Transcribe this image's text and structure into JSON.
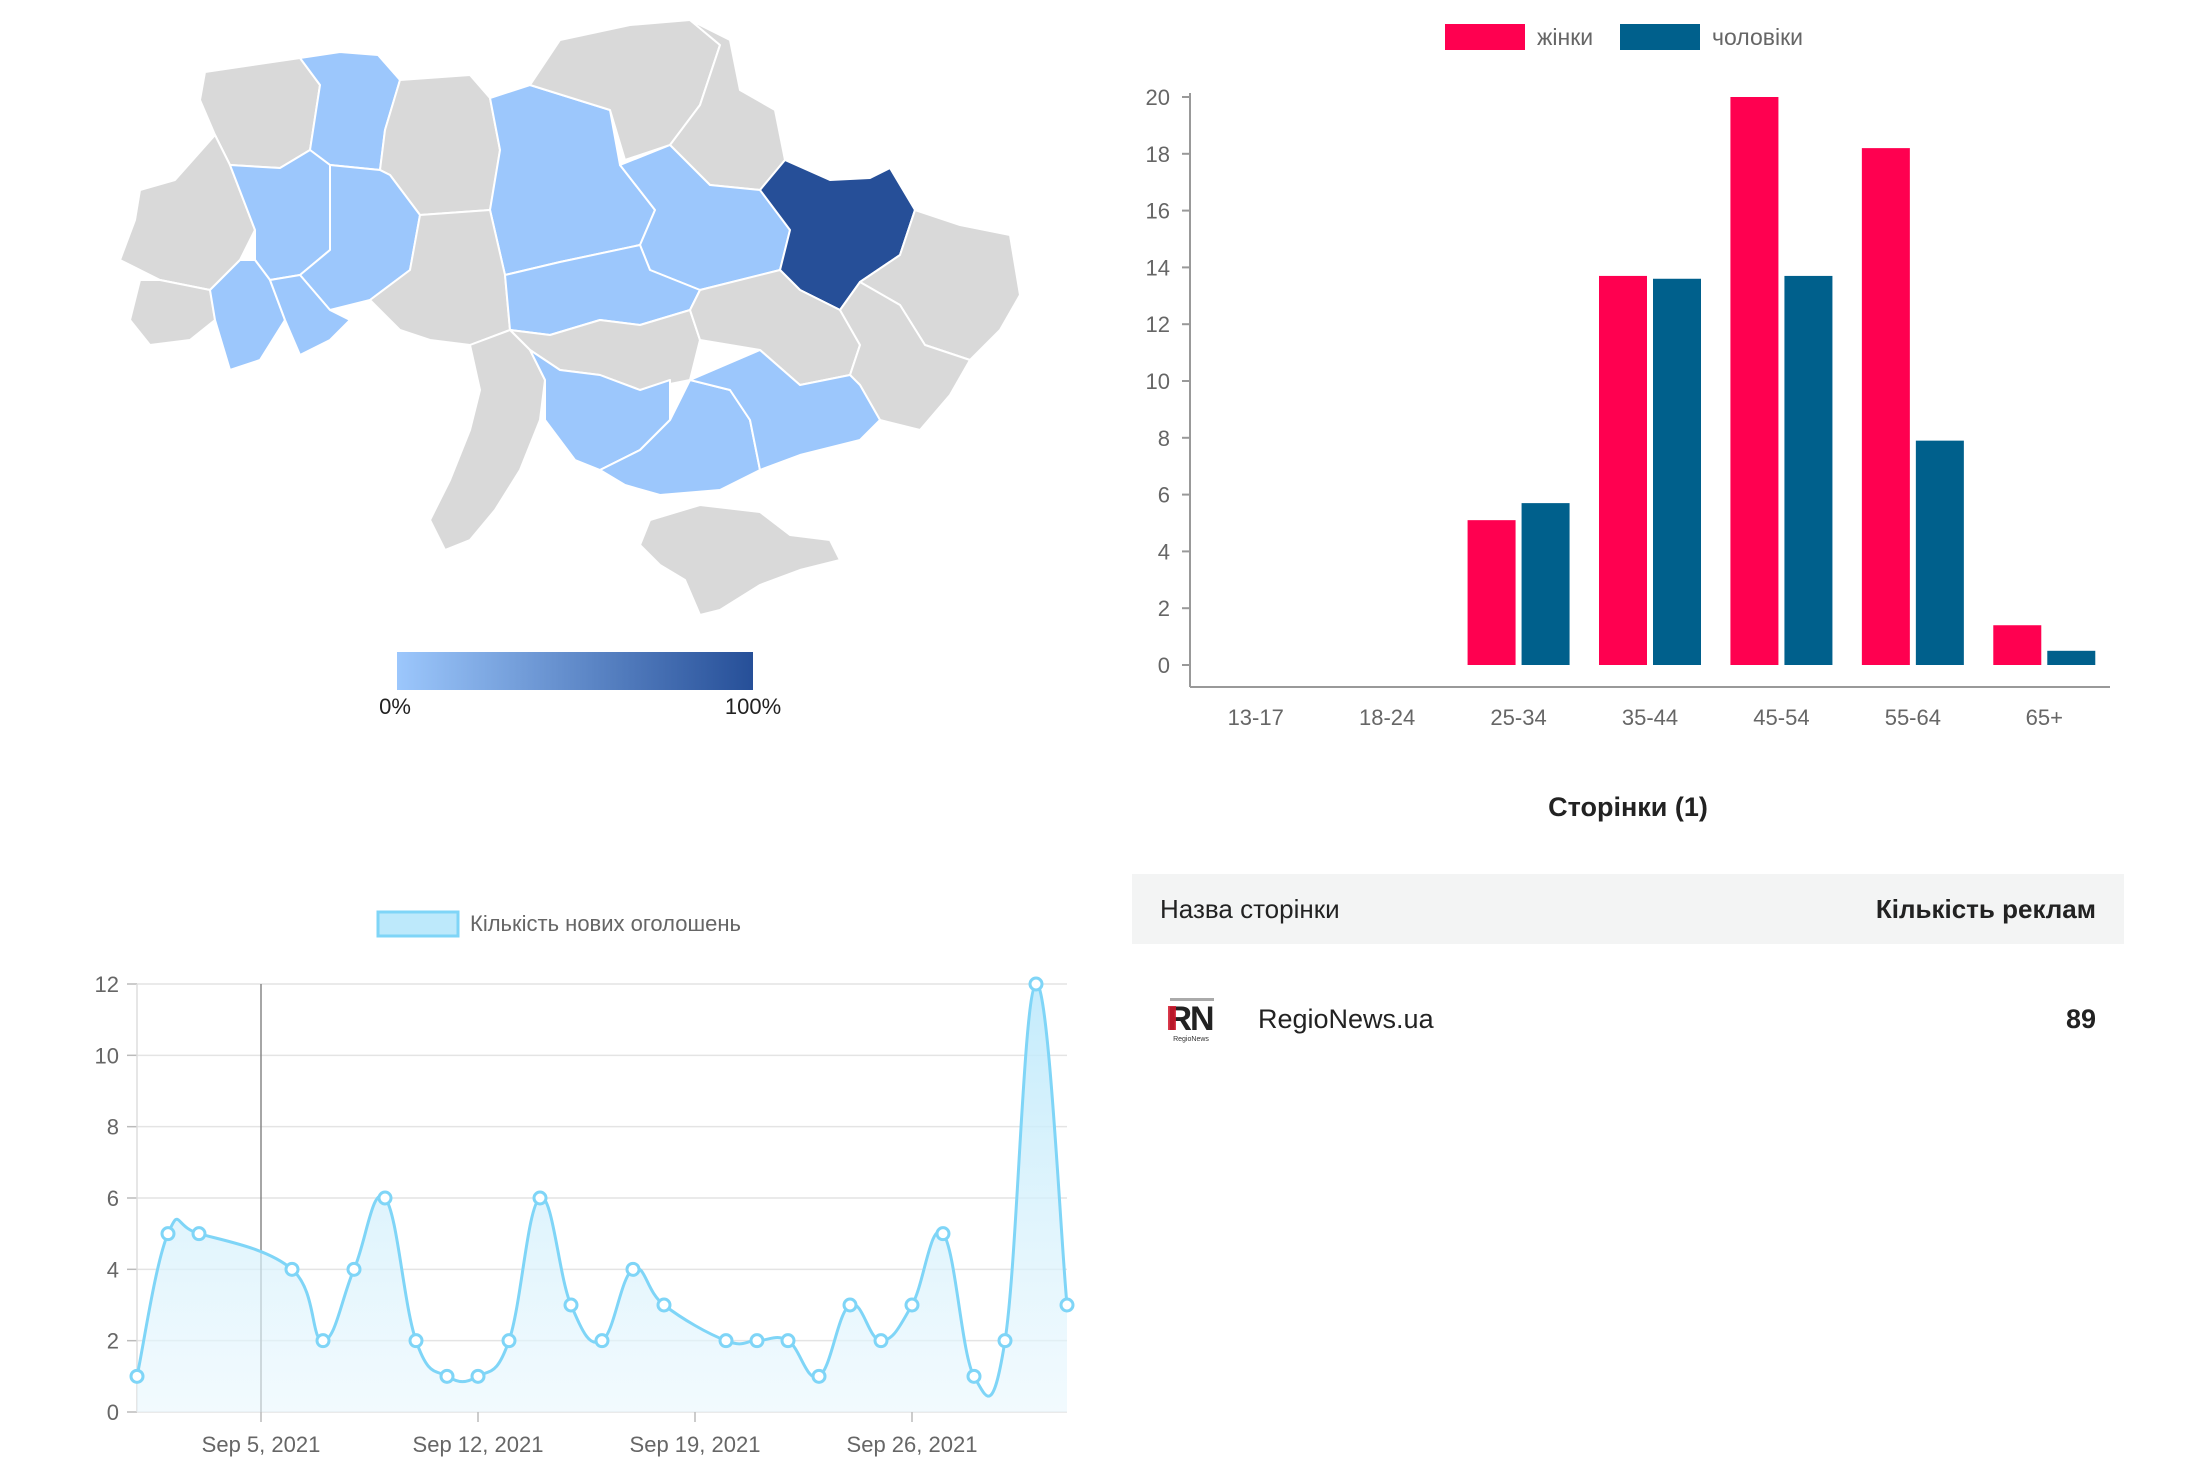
{
  "region_map": {
    "scale_min_label": "0%",
    "scale_max_label": "100%",
    "colors": {
      "gray": "#d9d9d9",
      "light": "#9cc7fc",
      "dark": "#264f98",
      "border": "#ffffff"
    },
    "regions": [
      {
        "name": "volyn",
        "share": "none"
      },
      {
        "name": "rivne",
        "share": "light"
      },
      {
        "name": "zhytomyr",
        "share": "none"
      },
      {
        "name": "chernihiv",
        "share": "none"
      },
      {
        "name": "sumy",
        "share": "none"
      },
      {
        "name": "kyiv",
        "share": "light"
      },
      {
        "name": "poltava",
        "share": "light"
      },
      {
        "name": "kharkiv",
        "share": "full"
      },
      {
        "name": "luhansk",
        "share": "none"
      },
      {
        "name": "lviv",
        "share": "none"
      },
      {
        "name": "ternopil",
        "share": "light"
      },
      {
        "name": "khmelnytskyi",
        "share": "light"
      },
      {
        "name": "vinnytsia",
        "share": "none"
      },
      {
        "name": "cherkasy",
        "share": "light"
      },
      {
        "name": "kirovohrad",
        "share": "none"
      },
      {
        "name": "dnipropetrovsk",
        "share": "none"
      },
      {
        "name": "donetsk",
        "share": "none"
      },
      {
        "name": "zakarpattia",
        "share": "none"
      },
      {
        "name": "ivano-frankivsk",
        "share": "light"
      },
      {
        "name": "chernivtsi",
        "share": "light"
      },
      {
        "name": "odesa",
        "share": "none"
      },
      {
        "name": "mykolaiv",
        "share": "light"
      },
      {
        "name": "kherson",
        "share": "light"
      },
      {
        "name": "zaporizhzhia",
        "share": "light"
      },
      {
        "name": "crimea",
        "share": "none"
      }
    ]
  },
  "chart_data": [
    {
      "type": "bar",
      "title": "",
      "xlabel": "",
      "ylabel": "",
      "categories": [
        "13-17",
        "18-24",
        "25-34",
        "35-44",
        "45-54",
        "55-64",
        "65+"
      ],
      "series": [
        {
          "name": "жінки",
          "color": "#ff0050",
          "values": [
            0,
            0,
            5.1,
            13.7,
            20,
            18.2,
            1.4
          ]
        },
        {
          "name": "чоловіки",
          "color": "#00608c",
          "values": [
            0,
            0,
            5.7,
            13.6,
            13.7,
            7.9,
            0.5
          ]
        }
      ],
      "ylim": [
        0,
        20
      ],
      "yticks": [
        0,
        2,
        4,
        6,
        8,
        10,
        12,
        14,
        16,
        18,
        20
      ],
      "grid": false,
      "legend": "top"
    },
    {
      "type": "area",
      "title": "",
      "xlabel": "",
      "ylabel": "",
      "series": [
        {
          "name": "Кількість нових оголошень",
          "color": "#7fd5f7",
          "x": [
            "2021-09-01",
            "2021-09-02",
            "2021-09-03",
            "2021-09-04",
            "2021-09-05",
            "2021-09-06",
            "2021-09-07",
            "2021-09-08",
            "2021-09-09",
            "2021-09-10",
            "2021-09-11",
            "2021-09-12",
            "2021-09-13",
            "2021-09-14",
            "2021-09-15",
            "2021-09-16",
            "2021-09-17",
            "2021-09-18",
            "2021-09-19",
            "2021-09-20",
            "2021-09-21",
            "2021-09-22",
            "2021-09-23",
            "2021-09-24",
            "2021-09-25",
            "2021-09-26",
            "2021-09-27",
            "2021-09-28",
            "2021-09-29",
            "2021-09-30",
            "2021-10-01"
          ],
          "values": [
            1,
            5,
            5,
            null,
            null,
            4,
            2,
            4,
            6,
            2,
            1,
            1,
            2,
            6,
            3,
            2,
            4,
            3,
            null,
            2,
            2,
            2,
            1,
            3,
            2,
            3,
            5,
            1,
            2,
            12,
            3
          ]
        }
      ],
      "xticks": [
        "Sep 5, 2021",
        "Sep 12, 2021",
        "Sep 19, 2021",
        "Sep 26, 2021"
      ],
      "xtick_dates": [
        "2021-09-05",
        "2021-09-12",
        "2021-09-19",
        "2021-09-26"
      ],
      "ylim": [
        0,
        12
      ],
      "yticks": [
        0,
        2,
        4,
        6,
        8,
        10,
        12
      ],
      "grid": true,
      "legend": "top"
    }
  ],
  "pages": {
    "title": "Сторінки (1)",
    "col_name": "Назва сторінки",
    "col_count": "Кількість реклам",
    "rows": [
      {
        "logo_text": "RN",
        "logo_caption": "RegioNews",
        "name": "RegioNews.ua",
        "count": "89"
      }
    ]
  }
}
